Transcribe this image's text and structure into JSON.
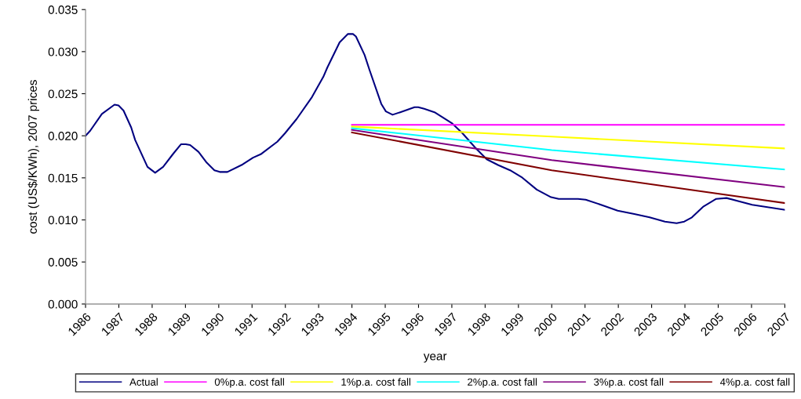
{
  "chart_data": {
    "type": "line",
    "xlabel": "year",
    "ylabel": "cost (US$/KWh), 2007 prices",
    "xlim": [
      1986,
      2007
    ],
    "xticks": [
      1986,
      1987,
      1988,
      1989,
      1990,
      1991,
      1992,
      1993,
      1994,
      1995,
      1996,
      1997,
      1998,
      1999,
      2000,
      2001,
      2002,
      2003,
      2004,
      2005,
      2006,
      2007
    ],
    "ylim": [
      0,
      0.035
    ],
    "yticks": [
      {
        "value": 0,
        "label": "0.000"
      },
      {
        "value": 0.005,
        "label": "0.005"
      },
      {
        "value": 0.01,
        "label": "0.010"
      },
      {
        "value": 0.015,
        "label": "0.015"
      },
      {
        "value": 0.02,
        "label": "0.020"
      },
      {
        "value": 0.025,
        "label": "0.025"
      },
      {
        "value": 0.03,
        "label": "0.030"
      },
      {
        "value": 0.035,
        "label": "0.035"
      }
    ],
    "grid": false,
    "legend": "bottom",
    "marker": "none",
    "line_style": "solid",
    "series": [
      {
        "name": "Actual",
        "color": "#000080",
        "x": [
          1986.0,
          1986.14,
          1986.49,
          1986.87,
          1986.99,
          1987.14,
          1987.37,
          1987.49,
          1987.86,
          1988.09,
          1988.33,
          1988.64,
          1988.87,
          1989.01,
          1989.14,
          1989.39,
          1989.64,
          1989.87,
          1990.03,
          1990.26,
          1990.72,
          1991.03,
          1991.26,
          1991.76,
          1991.99,
          1992.34,
          1992.8,
          1993.14,
          1993.26,
          1993.63,
          1993.88,
          1994.03,
          1994.12,
          1994.38,
          1994.53,
          1994.88,
          1995.02,
          1995.22,
          1995.45,
          1995.88,
          1995.99,
          1996.17,
          1996.48,
          1997.0,
          1997.32,
          1997.7,
          1998.05,
          1998.4,
          1998.75,
          1999.09,
          1999.55,
          1999.98,
          2000.21,
          2000.79,
          2001.02,
          2001.48,
          2001.98,
          2002.48,
          2002.94,
          2003.4,
          2003.75,
          2003.98,
          2004.21,
          2004.56,
          2004.94,
          2005.25,
          2006.02,
          2007.0
        ],
        "values": [
          0.02,
          0.0206,
          0.0226,
          0.0237,
          0.0236,
          0.023,
          0.021,
          0.0195,
          0.0163,
          0.0156,
          0.0163,
          0.0179,
          0.019,
          0.019,
          0.0189,
          0.0181,
          0.0168,
          0.0159,
          0.0157,
          0.0157,
          0.0166,
          0.0174,
          0.0178,
          0.0193,
          0.0203,
          0.022,
          0.0246,
          0.027,
          0.0281,
          0.0311,
          0.0321,
          0.0321,
          0.0318,
          0.0296,
          0.0278,
          0.0238,
          0.0229,
          0.0225,
          0.0228,
          0.0234,
          0.0234,
          0.0232,
          0.0228,
          0.0215,
          0.0203,
          0.0186,
          0.0172,
          0.0165,
          0.0159,
          0.0151,
          0.0136,
          0.0127,
          0.0125,
          0.0125,
          0.0124,
          0.0118,
          0.0111,
          0.0107,
          0.0103,
          0.0098,
          0.0096,
          0.0098,
          0.0103,
          0.0116,
          0.0125,
          0.0126,
          0.0118,
          0.0112
        ]
      },
      {
        "name": "0%p.a. cost fall",
        "color": "#ff00ff",
        "x": [
          1994,
          2000,
          2007
        ],
        "values": [
          0.0213,
          0.0213,
          0.0213
        ]
      },
      {
        "name": "1%p.a. cost fall",
        "color": "#ffff00",
        "x": [
          1994,
          2000,
          2007
        ],
        "values": [
          0.0211,
          0.0199,
          0.0185
        ]
      },
      {
        "name": "2%p.a. cost fall",
        "color": "#00ffff",
        "x": [
          1994,
          2000,
          2007
        ],
        "values": [
          0.0209,
          0.0183,
          0.016
        ]
      },
      {
        "name": "3%p.a. cost fall",
        "color": "#800080",
        "x": [
          1994,
          2000,
          2007
        ],
        "values": [
          0.0207,
          0.0171,
          0.0139
        ]
      },
      {
        "name": "4%p.a. cost fall",
        "color": "#800000",
        "x": [
          1994,
          2000,
          2007
        ],
        "values": [
          0.0204,
          0.0159,
          0.012
        ]
      }
    ]
  }
}
